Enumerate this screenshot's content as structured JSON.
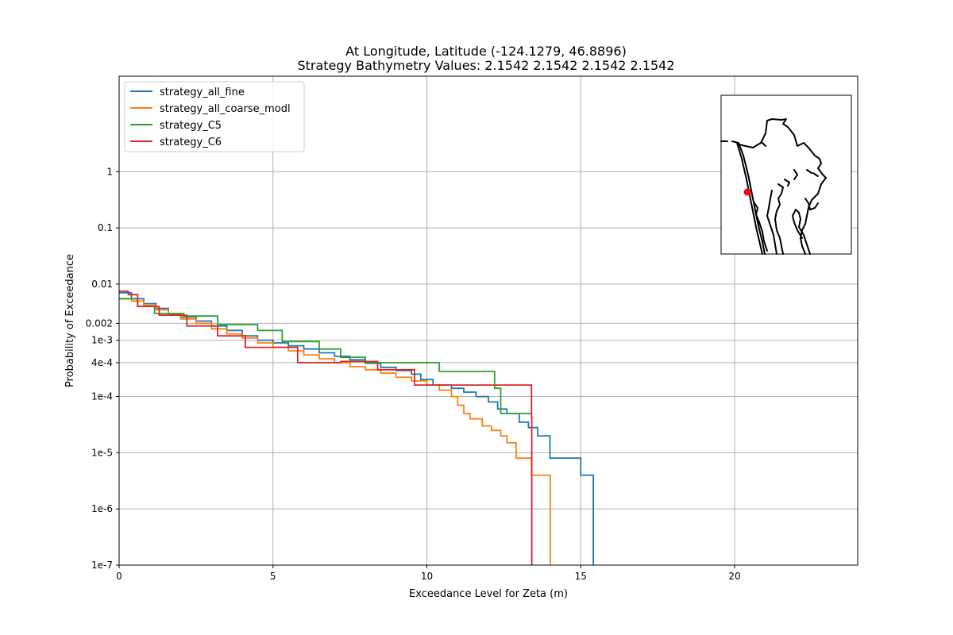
{
  "chart_data": {
    "type": "line",
    "title_line1": "At Longitude, Latitude (-124.1279,  46.8896)",
    "title_line2": "Strategy Bathymetry Values:    2.1542    2.1542    2.1542    2.1542",
    "xlabel": "Exceedance Level for Zeta (m)",
    "ylabel": "Probability of Exceedance",
    "xlim": [
      0,
      24
    ],
    "ylim": [
      1e-07,
      50
    ],
    "yscale": "log",
    "grid": true,
    "legend_position": "top-left",
    "x_ticks": [
      {
        "value": 0,
        "label": "0"
      },
      {
        "value": 5,
        "label": "5"
      },
      {
        "value": 10,
        "label": "10"
      },
      {
        "value": 15,
        "label": "15"
      },
      {
        "value": 20,
        "label": "20"
      }
    ],
    "y_ticks": [
      {
        "value": 1e-07,
        "label": "1e-7"
      },
      {
        "value": 1e-06,
        "label": "1e-6"
      },
      {
        "value": 1e-05,
        "label": "1e-5"
      },
      {
        "value": 0.0001,
        "label": "1e-4"
      },
      {
        "value": 0.0004,
        "label": "4e-4"
      },
      {
        "value": 0.001,
        "label": "1e-3"
      },
      {
        "value": 0.002,
        "label": "0.002"
      },
      {
        "value": 0.01,
        "label": "0.01"
      },
      {
        "value": 0.1,
        "label": "0.1"
      },
      {
        "value": 1,
        "label": "1"
      }
    ],
    "series": [
      {
        "name": "strategy_all_fine",
        "color": "#1f77b4",
        "x": [
          0,
          0.4,
          0.8,
          1.2,
          1.6,
          2.0,
          2.5,
          3.0,
          3.5,
          4.0,
          4.5,
          5.0,
          5.5,
          6.0,
          6.5,
          7.0,
          7.5,
          8.0,
          8.5,
          9.0,
          9.5,
          9.8,
          10.2,
          10.8,
          11.2,
          11.6,
          12.0,
          12.3,
          12.6,
          13.0,
          13.3,
          13.6,
          13.8,
          14.0,
          14.5,
          14.9,
          15.0,
          15.4,
          15.41
        ],
        "y": [
          0.007,
          0.0055,
          0.0045,
          0.0037,
          0.003,
          0.0026,
          0.0022,
          0.0018,
          0.0015,
          0.0012,
          0.001,
          0.0009,
          0.0008,
          0.0007,
          0.0006,
          0.00052,
          0.00045,
          0.00039,
          0.00033,
          0.00029,
          0.00025,
          0.0002,
          0.00016,
          0.00014,
          0.00012,
          0.0001,
          8e-05,
          6e-05,
          5e-05,
          3.5e-05,
          2.8e-05,
          2e-05,
          2e-05,
          8e-06,
          8e-06,
          8e-06,
          4e-06,
          4e-06,
          1e-07
        ]
      },
      {
        "name": "strategy_all_coarse_modl",
        "color": "#ff7f0e",
        "x": [
          0,
          0.4,
          0.8,
          1.2,
          1.6,
          2.0,
          2.5,
          3.0,
          3.5,
          4.0,
          4.5,
          5.0,
          5.5,
          6.0,
          6.5,
          7.0,
          7.5,
          8.0,
          8.5,
          9.0,
          9.5,
          10.0,
          10.4,
          10.8,
          11.0,
          11.2,
          11.4,
          11.8,
          12.1,
          12.4,
          12.6,
          12.9,
          13.1,
          13.4,
          13.5,
          14.0,
          14.01
        ],
        "y": [
          0.0055,
          0.005,
          0.0042,
          0.0035,
          0.0029,
          0.0024,
          0.002,
          0.0016,
          0.0013,
          0.0011,
          0.0009,
          0.00075,
          0.00065,
          0.00055,
          0.00047,
          0.0004,
          0.00034,
          0.0003,
          0.00026,
          0.00022,
          0.00019,
          0.00016,
          0.00013,
          0.0001,
          7e-05,
          5e-05,
          4e-05,
          3e-05,
          2.5e-05,
          2e-05,
          1.5e-05,
          8e-06,
          8e-06,
          4e-06,
          4e-06,
          4e-06,
          1e-07
        ]
      },
      {
        "name": "strategy_C5",
        "color": "#2ca02c",
        "x": [
          0,
          0.6,
          1.15,
          2.1,
          3.2,
          4.5,
          5.3,
          6.5,
          7.2,
          8.0,
          10.4,
          12.2,
          12.4,
          13.4
        ],
        "y": [
          0.0055,
          0.004,
          0.003,
          0.0027,
          0.0019,
          0.0015,
          0.00095,
          0.0007,
          0.0005,
          0.0004,
          0.00028,
          0.00014,
          5e-05,
          5e-05
        ]
      },
      {
        "name": "strategy_C6",
        "color": "#d62728",
        "x": [
          0,
          0.3,
          0.6,
          1.3,
          2.2,
          3.2,
          4.1,
          5.8,
          7.2,
          8.4,
          9.6,
          11.3,
          13.4,
          13.41
        ],
        "y": [
          0.0075,
          0.0065,
          0.004,
          0.0028,
          0.0018,
          0.0012,
          0.00075,
          0.0004,
          0.00042,
          0.0003,
          0.00016,
          0.00016,
          4.4e-05,
          1e-07
        ]
      }
    ]
  },
  "inset": {
    "marker_color": "#ff0000",
    "coastline_color": "#000000"
  }
}
